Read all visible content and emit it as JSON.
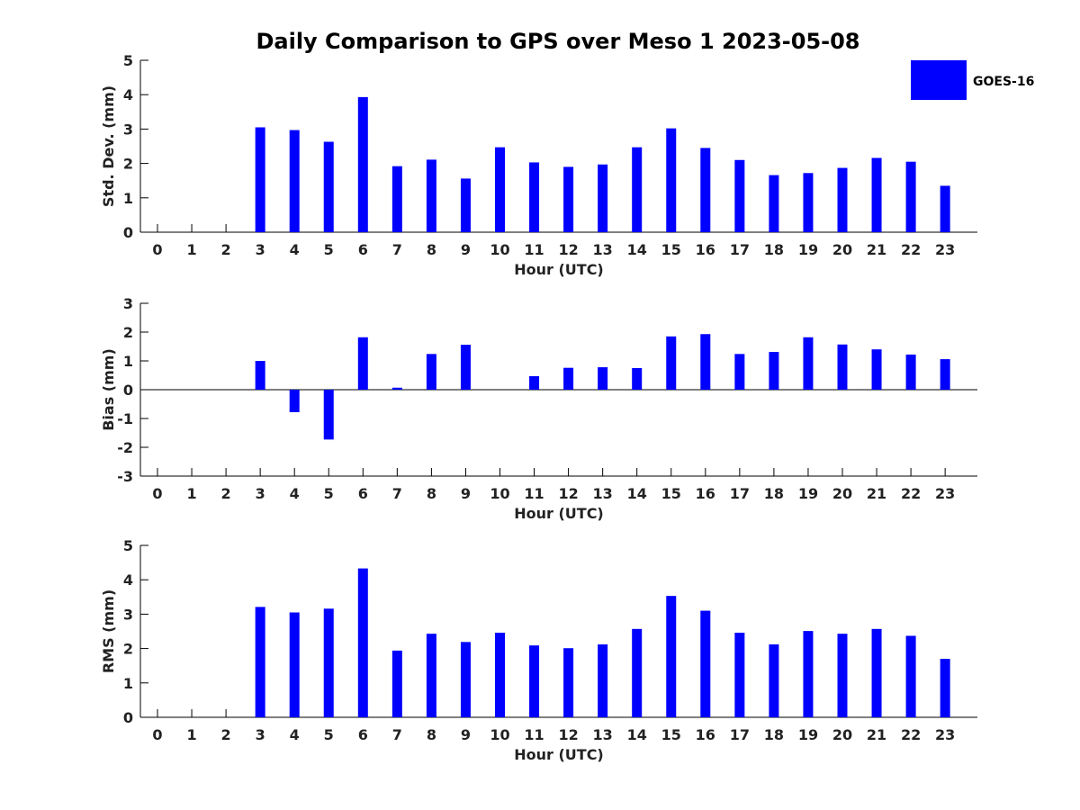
{
  "chart_data": {
    "type": "bar",
    "title": "Daily Comparison to GPS over Meso 1 2023-05-08",
    "legend": {
      "label": "GOES-16",
      "color": "#0000FF",
      "placement": "top-right"
    },
    "panels": [
      {
        "name": "std-dev",
        "ylabel": "Std. Dev. (mm)",
        "xlabel": "Hour (UTC)",
        "ylim": [
          0,
          5
        ],
        "yticks": [
          "0",
          "1",
          "2",
          "3",
          "4",
          "5"
        ],
        "categories": [
          "0",
          "1",
          "2",
          "3",
          "4",
          "5",
          "6",
          "7",
          "8",
          "9",
          "10",
          "11",
          "12",
          "13",
          "14",
          "15",
          "16",
          "17",
          "18",
          "19",
          "20",
          "21",
          "22",
          "23"
        ],
        "values": [
          null,
          null,
          null,
          3.05,
          2.97,
          2.63,
          3.93,
          1.92,
          2.11,
          1.56,
          2.47,
          2.03,
          1.9,
          1.97,
          2.47,
          3.02,
          2.45,
          2.1,
          1.66,
          1.72,
          1.87,
          2.16,
          2.05,
          1.35
        ]
      },
      {
        "name": "bias",
        "ylabel": "Bias (mm)",
        "xlabel": "Hour (UTC)",
        "ylim": [
          -3,
          3
        ],
        "yticks": [
          "-3",
          "-2",
          "-1",
          "0",
          "1",
          "2",
          "3"
        ],
        "categories": [
          "0",
          "1",
          "2",
          "3",
          "4",
          "5",
          "6",
          "7",
          "8",
          "9",
          "10",
          "11",
          "12",
          "13",
          "14",
          "15",
          "16",
          "17",
          "18",
          "19",
          "20",
          "21",
          "22",
          "23"
        ],
        "values": [
          null,
          null,
          null,
          1.0,
          -0.78,
          -1.73,
          1.82,
          0.07,
          1.24,
          1.56,
          0.0,
          0.47,
          0.76,
          0.78,
          0.75,
          1.85,
          1.93,
          1.24,
          1.31,
          1.82,
          1.57,
          1.4,
          1.22,
          1.06
        ]
      },
      {
        "name": "rms",
        "ylabel": "RMS (mm)",
        "xlabel": "Hour (UTC)",
        "ylim": [
          0,
          5
        ],
        "yticks": [
          "0",
          "1",
          "2",
          "3",
          "4",
          "5"
        ],
        "categories": [
          "0",
          "1",
          "2",
          "3",
          "4",
          "5",
          "6",
          "7",
          "8",
          "9",
          "10",
          "11",
          "12",
          "13",
          "14",
          "15",
          "16",
          "17",
          "18",
          "19",
          "20",
          "21",
          "22",
          "23"
        ],
        "values": [
          null,
          null,
          null,
          3.21,
          3.05,
          3.16,
          4.33,
          1.94,
          2.43,
          2.19,
          2.46,
          2.09,
          2.01,
          2.12,
          2.57,
          3.53,
          3.1,
          2.46,
          2.12,
          2.51,
          2.43,
          2.57,
          2.37,
          1.7
        ]
      }
    ]
  }
}
